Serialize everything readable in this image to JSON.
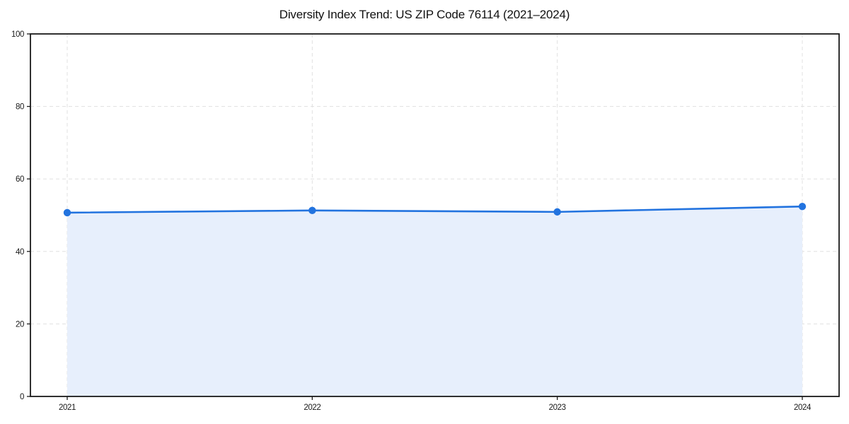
{
  "chart_data": {
    "type": "area",
    "title": "Diversity Index Trend: US ZIP Code 76114 (2021–2024)",
    "categories": [
      "2021",
      "2022",
      "2023",
      "2024"
    ],
    "series": [
      {
        "name": "Diversity Index",
        "values": [
          50.7,
          51.3,
          50.9,
          52.4
        ]
      }
    ],
    "xlabel": "",
    "ylabel": "",
    "ylim": [
      0,
      100
    ],
    "yticks": [
      0,
      20,
      40,
      60,
      80,
      100
    ],
    "grid": true,
    "grid_style": "dashed",
    "legend_position": "none",
    "colors": {
      "line": "#2273df",
      "marker": "#2273df",
      "fill": "#e7effc",
      "grid": "#e0e0e0",
      "axis": "#1a1a1a",
      "text": "#1a1a1a",
      "background": "#ffffff"
    }
  }
}
